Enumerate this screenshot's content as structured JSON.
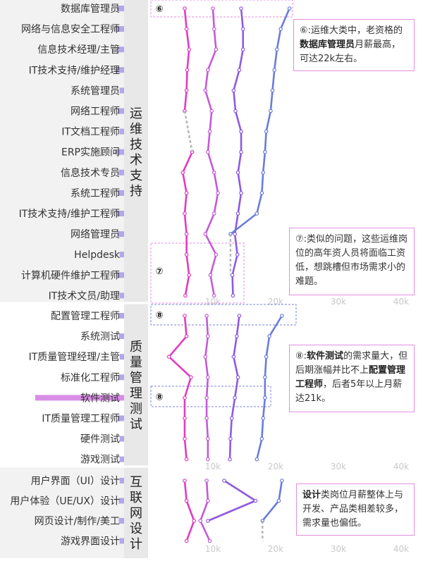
{
  "chart_data": {
    "type": "line",
    "x_ticks": [
      "10k",
      "20k",
      "30k",
      "40k"
    ],
    "tick_values": [
      10,
      20,
      30,
      40
    ],
    "series_colors": {
      "s1": "#e23cc0",
      "s2": "#c45ad8",
      "s3": "#8e5ae0",
      "s4": "#6a7cdc",
      "group_bg": "#e8e8e8",
      "note_border": "#e58ee0",
      "note_dashed": "#7a84d8",
      "bar": "#d98ee6"
    },
    "groups": [
      {
        "name": "运维技术支持",
        "categories": [
          "数据库管理员",
          "网络与信息安全工程师",
          "信息技术经理/主管",
          "IT技术支持/维护经理",
          "系统管理员",
          "网络工程师",
          "IT文档工程师",
          "ERP实施顾问",
          "信息技术专员",
          "系统工程师",
          "IT技术支持/维护工程师",
          "网络管理员",
          "Helpdesk",
          "计算机硬件维护工程师",
          "IT技术文员/助理"
        ],
        "demand": [
          0.08,
          0.1,
          0.08,
          0.09,
          0.05,
          0.07,
          0.05,
          0.1,
          0.06,
          0.07,
          0.09,
          0.07,
          0.05,
          0.08,
          0.05
        ],
        "series": [
          {
            "values": [
              5.5,
              5.8,
              6.2,
              5.9,
              5.8,
              5.5,
              null,
              6.7,
              5.2,
              5.8,
              5.5,
              5.8,
              5.8,
              6.2,
              5.6
            ]
          },
          {
            "values": [
              10,
              10.2,
              10.5,
              9.2,
              8.8,
              9.8,
              9.5,
              9.2,
              10.2,
              10.8,
              10.2,
              8.8,
              10.5,
              9.6,
              10.2
            ]
          },
          {
            "values": [
              14.5,
              14.8,
              14.8,
              14.2,
              13.3,
              13.6,
              14.5,
              14.5,
              14.0,
              14.5,
              14.0,
              13.5,
              13.9,
              13.1,
              13.2
            ]
          },
          {
            "values": [
              22.2,
              20.8,
              20.2,
              19.8,
              19.5,
              19.2,
              18.5,
              18.3,
              18.0,
              17.8,
              17.0,
              12.8,
              null,
              null,
              null
            ]
          }
        ],
        "dashed_gaps": [
          {
            "series": 0,
            "from": 5,
            "to": 7
          },
          {
            "series": 3,
            "from": 11,
            "to": 13
          }
        ]
      },
      {
        "name": "质量管理测试",
        "categories": [
          "配置管理工程师",
          "系统测试",
          "IT质量管理经理/主管",
          "标准化工程师",
          "软件测试",
          "IT质量管理工程师",
          "硬件测试",
          "游戏测试"
        ],
        "demand": [
          0.06,
          0.06,
          0.05,
          0.06,
          1.0,
          0.07,
          0.05,
          0.05
        ],
        "series": [
          {
            "values": [
              5.5,
              5.8,
              3.0,
              6.5,
              5.5,
              5.5,
              5.5,
              5.8
            ]
          },
          {
            "values": [
              9.0,
              9.2,
              8.8,
              9.2,
              9.0,
              9.0,
              9.2,
              9.2
            ]
          },
          {
            "values": [
              14.2,
              13.8,
              13.3,
              14.0,
              13.5,
              13.0,
              12.8,
              12.7
            ]
          },
          {
            "values": [
              21.0,
              19.0,
              18.5,
              18.3,
              18.3,
              18.0,
              17.8,
              17.0
            ]
          }
        ]
      },
      {
        "name": "互联网设计",
        "categories": [
          "用户界面（UI）设计",
          "用户体验（UE/UX）设计",
          "网页设计/制作/美工",
          "游戏界面设计"
        ],
        "demand": [
          0.05,
          0.06,
          0.06,
          0.05
        ],
        "series": [
          {
            "values": [
              5.5,
              5.8,
              7.0,
              5.8
            ]
          },
          {
            "values": [
              9.0,
              9.2,
              8.0,
              9.5
            ]
          },
          {
            "values": [
              11.8,
              16.8,
              9.2,
              null
            ]
          },
          {
            "values": [
              21.0,
              20.5,
              17.9,
              null
            ]
          }
        ],
        "dashed_gaps": [
          {
            "series": 3,
            "from": 2,
            "to": 3
          }
        ]
      }
    ]
  },
  "highlights": {
    "hl6": {
      "marker": "⑥"
    },
    "hl7": {
      "marker": "⑦"
    },
    "hl8a": {
      "marker": "⑧"
    },
    "hl8b": {
      "marker": "⑧"
    }
  },
  "notes": {
    "note6": {
      "prefix": "⑥:运维大类中，老资格的",
      "bold": "数据库管理员",
      "suffix": "月薪最高，可达22k左右。"
    },
    "note7": {
      "text": "⑦:类似的问题，这些运维岗位的高年资人员将面临工资低，想跳槽但市场需求小的难题。"
    },
    "note8": {
      "p1": "⑧:",
      "b1": "软件测试",
      "p2": "的需求量大，但后期涨幅并比不上",
      "b2": "配置管理工程师",
      "p3": "，后者5年以上月薪达21k。"
    },
    "note9": {
      "b1": "设计",
      "p1": "类岗位月薪整体上与开发、产品类相差较多，需求量也偏低。"
    }
  }
}
